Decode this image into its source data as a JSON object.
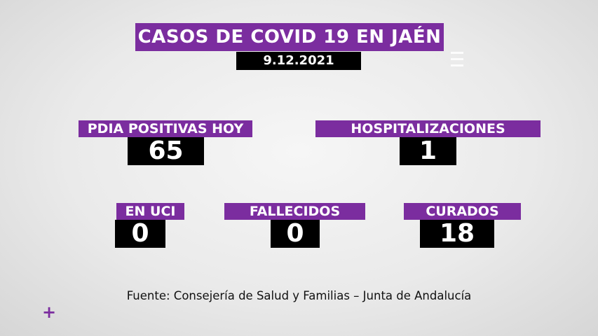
{
  "header": {
    "title": "CASOS DE COVID 19 EN JAÉN",
    "date": "9.12.2021"
  },
  "stats": {
    "pdia_positivas": {
      "label": "PDIA POSITIVAS HOY",
      "value": "65"
    },
    "hospitalizaciones": {
      "label": "HOSPITALIZACIONES",
      "value": "1"
    },
    "en_uci": {
      "label": "EN UCI",
      "value": "0"
    },
    "fallecidos": {
      "label": "FALLECIDOS",
      "value": "0"
    },
    "curados": {
      "label": "CURADOS",
      "value": "18"
    }
  },
  "footer": {
    "source": "Fuente: Consejería de Salud y Familias – Junta de Andalucía",
    "plus_symbol": "+"
  },
  "colors": {
    "accent": "#7b2d9f",
    "value_box": "#000000",
    "text_light": "#ffffff"
  }
}
